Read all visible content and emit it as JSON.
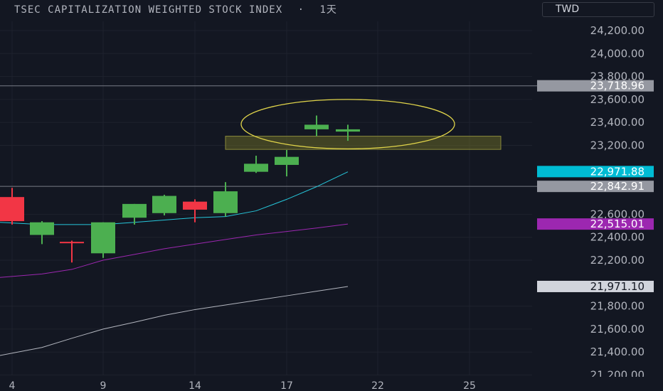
{
  "header": {
    "symbol": "TSEC CAPITALIZATION WEIGHTED STOCK INDEX",
    "separator": "·",
    "interval": "1天",
    "currency": "TWD"
  },
  "chart_data": {
    "type": "candlestick",
    "x_ticks": [
      "4",
      "9",
      "14",
      "17",
      "22",
      "25"
    ],
    "y_ticks": [
      "24,200.00",
      "24,000.00",
      "23,800.00",
      "23,600.00",
      "23,400.00",
      "23,200.00",
      "22,600.00",
      "22,400.00",
      "22,200.00",
      "21,800.00",
      "21,600.00",
      "21,400.00",
      "21,200.00"
    ],
    "ylim": [
      21140,
      24260
    ],
    "grid": true,
    "candles": [
      {
        "open": 22540,
        "high": 22830,
        "low": 22510,
        "close": 22750
      },
      {
        "open": 22530,
        "high": 22540,
        "low": 22340,
        "close": 22420
      },
      {
        "open": 22360,
        "high": 22370,
        "low": 22180,
        "close": 22360
      },
      {
        "open": 22530,
        "high": 22530,
        "low": 22220,
        "close": 22260
      },
      {
        "open": 22690,
        "high": 22690,
        "low": 22510,
        "close": 22570
      },
      {
        "open": 22760,
        "high": 22770,
        "low": 22590,
        "close": 22610
      },
      {
        "open": 22640,
        "high": 22730,
        "low": 22530,
        "close": 22710
      },
      {
        "open": 22800,
        "high": 22880,
        "low": 22580,
        "close": 22610
      },
      {
        "open": 23040,
        "high": 23110,
        "low": 22960,
        "close": 22970
      },
      {
        "open": 23100,
        "high": 23160,
        "low": 22930,
        "close": 23030
      },
      {
        "open": 23380,
        "high": 23460,
        "low": 23280,
        "close": 23340
      },
      {
        "open": 23340,
        "high": 23380,
        "low": 23240,
        "close": 23320
      }
    ],
    "moving_averages": [
      {
        "color": "#26c6da",
        "values": [
          22530,
          22510,
          22510,
          22510,
          22530,
          22550,
          22570,
          22580,
          22630,
          22730,
          22840,
          22970
        ]
      },
      {
        "color": "#9c27b0",
        "values": [
          22050,
          22080,
          22120,
          22200,
          22250,
          22300,
          22340,
          22380,
          22420,
          22450,
          22480,
          22515
        ]
      },
      {
        "color": "#b2b5be",
        "values": [
          21370,
          21440,
          21520,
          21600,
          21660,
          21720,
          21770,
          21810,
          21850,
          21890,
          21930,
          21971
        ]
      }
    ],
    "horizontal_lines": [
      {
        "value": 23718.96,
        "label": "23,718.96",
        "badge_bg": "#9598a1",
        "badge_fg": "#ffffff"
      },
      {
        "value": 22842.91,
        "label": "22,842.91",
        "badge_bg": "#9598a1",
        "badge_fg": "#ffffff"
      }
    ],
    "price_badges": [
      {
        "value": 22971.88,
        "label": "22,971.88",
        "bg": "#00bcd4",
        "fg": "#ffffff"
      },
      {
        "value": 22515.01,
        "label": "22,515.01",
        "bg": "#9c27b0",
        "fg": "#ffffff"
      },
      {
        "value": 21971.1,
        "label": "21,971.10",
        "bg": "#d1d4dc",
        "fg": "#131722"
      }
    ],
    "highlight_zone": {
      "low": 23165,
      "high": 23280
    },
    "annotation_ellipse": {
      "low": 23170,
      "high": 23600
    },
    "up_color": "#f23645",
    "down_color": "#4caf50"
  }
}
